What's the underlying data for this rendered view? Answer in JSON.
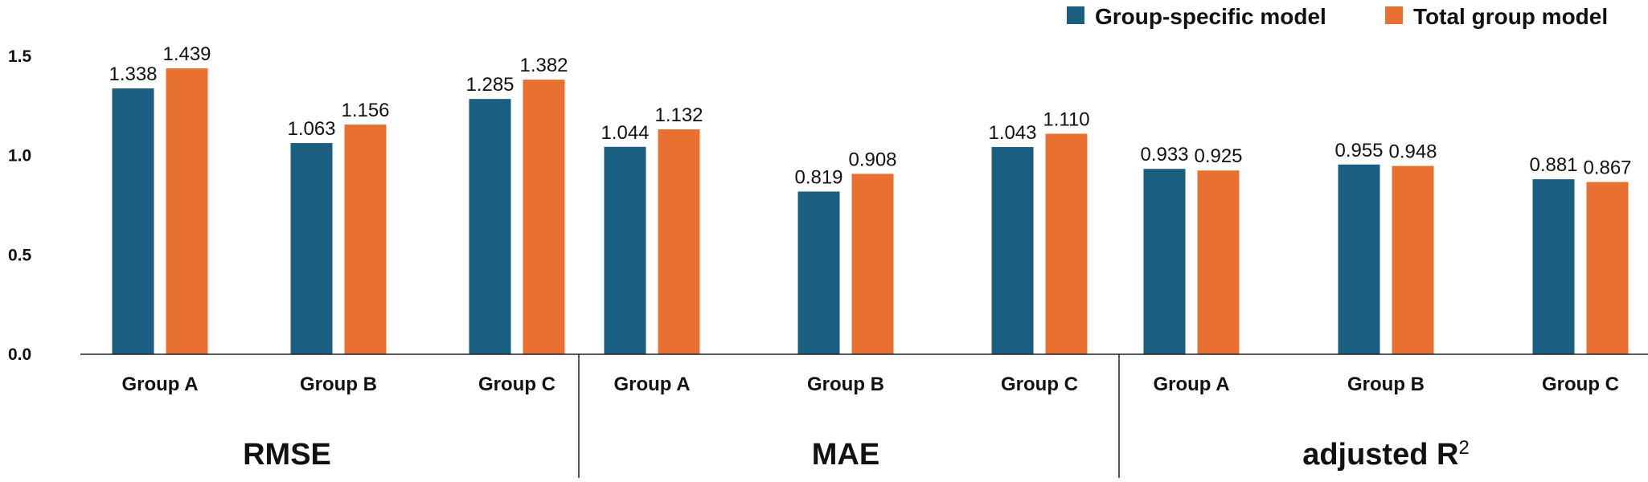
{
  "chart_data": {
    "type": "bar",
    "title": "",
    "xlabel": "",
    "ylabel": "",
    "ylim": [
      0,
      1.5
    ],
    "yticks": [
      "0.0",
      "0.5",
      "1.0",
      "1.5"
    ],
    "legend_position": "top-right",
    "groups": [
      {
        "label": "RMSE",
        "sup": "",
        "categories": [
          "Group A",
          "Group B",
          "Group C"
        ]
      },
      {
        "label": "MAE",
        "sup": "",
        "categories": [
          "Group A",
          "Group B",
          "Group C"
        ]
      },
      {
        "label": "adjusted R",
        "sup": "2",
        "categories": [
          "Group A",
          "Group B",
          "Group C"
        ]
      }
    ],
    "series": [
      {
        "name": "Group-specific model",
        "color": "#1a5e82",
        "values": [
          1.338,
          1.063,
          1.285,
          1.044,
          0.819,
          1.043,
          0.933,
          0.955,
          0.881
        ],
        "labels": [
          "1.338",
          "1.063",
          "1.285",
          "1.044",
          "0.819",
          "1.043",
          "0.933",
          "0.955",
          "0.881"
        ]
      },
      {
        "name": "Total group model",
        "color": "#e87131",
        "values": [
          1.439,
          1.156,
          1.382,
          1.132,
          0.908,
          1.11,
          0.925,
          0.948,
          0.867
        ],
        "labels": [
          "1.439",
          "1.156",
          "1.382",
          "1.132",
          "0.908",
          "1.110",
          "0.925",
          "0.948",
          "0.867"
        ]
      }
    ]
  }
}
